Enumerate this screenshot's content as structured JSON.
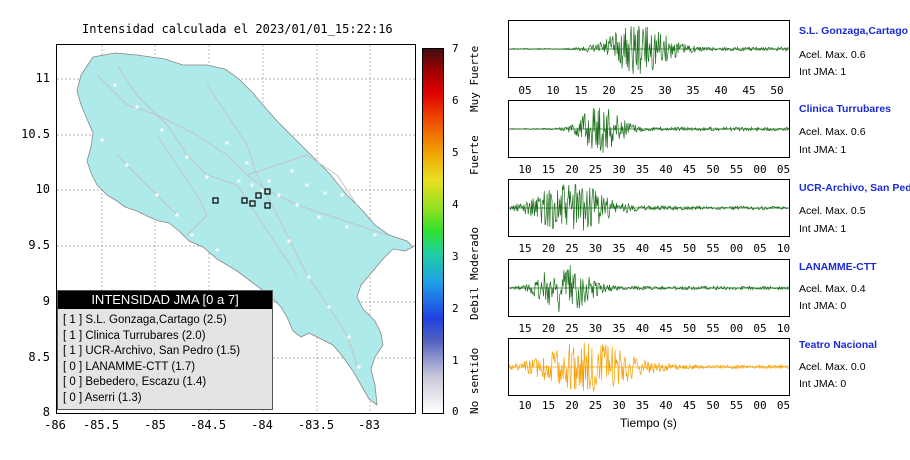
{
  "map": {
    "title": "Intensidad calculada el 2023/01/01_15:22:16",
    "lat_ticks": [
      "11",
      "10.5",
      "10",
      "9.5",
      "9",
      "8.5",
      "8"
    ],
    "lon_ticks": [
      "-86",
      "-85.5",
      "-85",
      "-84.5",
      "-84",
      "-83.5",
      "-83"
    ],
    "fill_color": "#aeeaea",
    "station_marker_color": "#000000"
  },
  "legend": {
    "title": "INTENSIDAD JMA [0 a 7]",
    "rows": [
      "[ 1 ]  S.L. Gonzaga,Cartago (2.5)",
      "[ 1 ]  Clinica Turrubares (2.0)",
      "[ 1 ]  UCR-Archivo, San Pedro (1.5)",
      "[ 0 ]  LANAMME-CTT (1.7)",
      "[ 0 ]  Bebedero, Escazu (1.4)",
      "[ 0 ]  Aserri (1.3)"
    ]
  },
  "colorbar": {
    "ticks": [
      "7",
      "6",
      "5",
      "4",
      "3",
      "2",
      "1",
      "0"
    ],
    "labels": [
      "Muy Fuerte",
      "Fuerte",
      "Moderado",
      "Debil",
      "No sentido"
    ]
  },
  "chart_data": [
    {
      "type": "line",
      "title": "S.L. Gonzaga,Cartago",
      "accel_label": "Acel. Max. 0.6",
      "jma_label": "Int JMA: 1",
      "x_ticks": [
        "05",
        "10",
        "15",
        "20",
        "25",
        "30",
        "35",
        "40",
        "45",
        "50"
      ],
      "color": "#1a6e1a",
      "peak_amplitude": 0.6
    },
    {
      "type": "line",
      "title": "Clinica Turrubares",
      "accel_label": "Acel. Max. 0.6",
      "jma_label": "Int JMA: 1",
      "x_ticks": [
        "10",
        "15",
        "20",
        "25",
        "30",
        "35",
        "40",
        "45",
        "50",
        "55",
        "00",
        "05"
      ],
      "color": "#1a6e1a",
      "peak_amplitude": 0.6
    },
    {
      "type": "line",
      "title": "UCR-Archivo, San Pedro",
      "accel_label": "Acel. Max. 0.5",
      "jma_label": "Int JMA: 1",
      "x_ticks": [
        "15",
        "20",
        "25",
        "30",
        "35",
        "40",
        "45",
        "50",
        "55",
        "00",
        "05",
        "10"
      ],
      "color": "#1a6e1a",
      "peak_amplitude": 0.5
    },
    {
      "type": "line",
      "title": "LANAMME-CTT",
      "accel_label": "Acel. Max. 0.4",
      "jma_label": "Int JMA: 0",
      "x_ticks": [
        "15",
        "20",
        "25",
        "30",
        "35",
        "40",
        "45",
        "50",
        "55",
        "00",
        "05",
        "10"
      ],
      "color": "#1a6e1a",
      "peak_amplitude": 0.4
    },
    {
      "type": "line",
      "title": "Teatro Nacional",
      "accel_label": "Acel. Max. 0.0",
      "jma_label": "Int JMA: 0",
      "x_ticks": [
        "10",
        "15",
        "20",
        "25",
        "30",
        "35",
        "40",
        "45",
        "50",
        "55",
        "00",
        "05"
      ],
      "x_label": "Tiempo (s)",
      "color": "#f5a000",
      "peak_amplitude": 0.0
    }
  ]
}
